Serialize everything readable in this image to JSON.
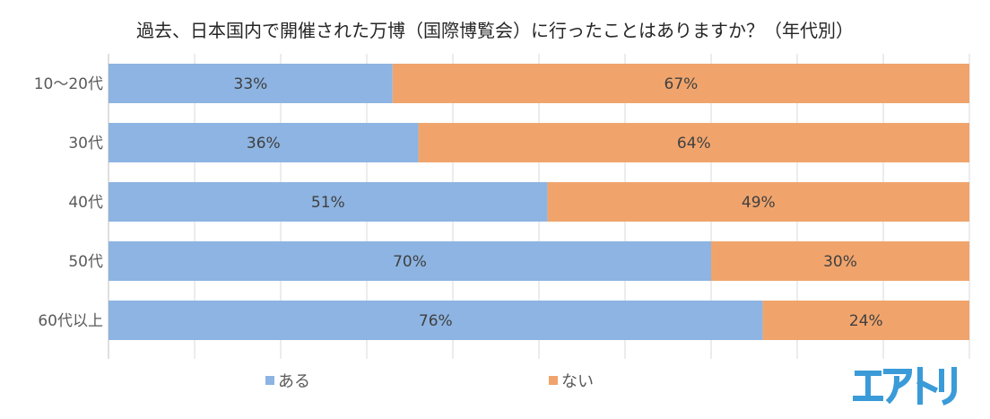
{
  "chart_data": {
    "type": "bar",
    "orientation": "horizontal",
    "stacked": true,
    "title": "過去、日本国内で開催された万博（国際博覧会）に行ったことはありますか？（年代別）",
    "categories": [
      "10～20代",
      "30代",
      "40代",
      "50代",
      "60代以上"
    ],
    "series": [
      {
        "name": "ある",
        "values": [
          33,
          36,
          51,
          70,
          76
        ],
        "labels": [
          "33%",
          "36%",
          "51%",
          "70%",
          "76%"
        ],
        "color": "#8db4e2"
      },
      {
        "name": "ない",
        "values": [
          67,
          64,
          49,
          30,
          24
        ],
        "labels": [
          "67%",
          "64%",
          "49%",
          "30%",
          "24%"
        ],
        "color": "#f0a46c"
      }
    ],
    "xlim": [
      0,
      100
    ],
    "grid": true,
    "legend_position": "bottom"
  },
  "logo": {
    "text": "エアトリ",
    "color": "#3a9bd8"
  },
  "colors": {
    "title": "#262626",
    "axis_label": "#595959",
    "data_label": "#404040",
    "grid": "#d9d9d9"
  }
}
